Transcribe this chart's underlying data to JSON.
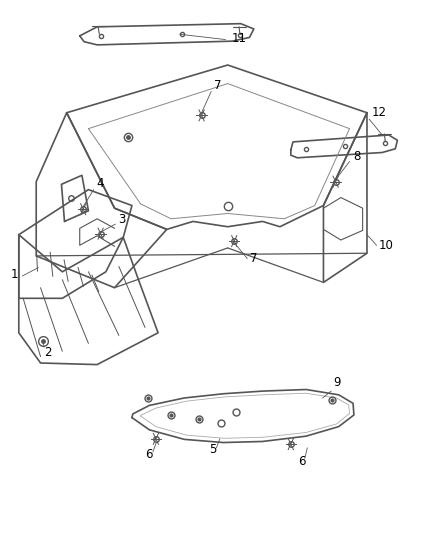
{
  "background_color": "#ffffff",
  "line_color": "#555555",
  "label_color": "#000000",
  "title": "",
  "figsize": [
    4.38,
    5.33
  ],
  "dpi": 100
}
